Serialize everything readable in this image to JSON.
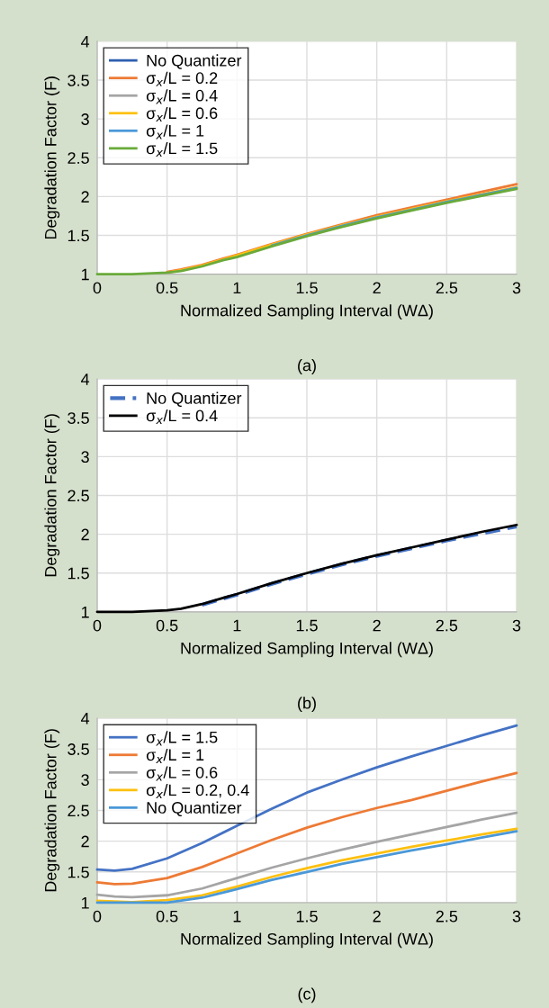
{
  "chart_data": [
    {
      "type": "line",
      "xlabel": "Normalized Sampling Interval (WΔ)",
      "ylabel": "Degradation Factor (F)",
      "annotations": [
        "(a)"
      ],
      "xlim": [
        0,
        3
      ],
      "ylim": [
        1,
        4
      ],
      "xticks": [
        0,
        0.5,
        1,
        1.5,
        2,
        2.5,
        3
      ],
      "yticks": [
        1,
        1.5,
        2,
        2.5,
        3,
        3.5,
        4
      ],
      "grid": true,
      "legend": "top left",
      "x": [
        0,
        0.25,
        0.5,
        0.6,
        0.75,
        0.9,
        1,
        1.25,
        1.5,
        1.75,
        2,
        2.25,
        2.5,
        2.75,
        3
      ],
      "series": [
        {
          "name": "No Quantizer",
          "color": "#2e5fae",
          "values": [
            null,
            null,
            null,
            null,
            null,
            null,
            null,
            null,
            null,
            null,
            null,
            null,
            null,
            null,
            null
          ]
        },
        {
          "name": "σ$_{x}$/L = 0.2",
          "color": "#ed7a35",
          "values": [
            null,
            null,
            1.03,
            1.06,
            1.12,
            1.2,
            1.25,
            1.39,
            1.52,
            1.64,
            1.76,
            1.86,
            1.96,
            2.06,
            2.16
          ]
        },
        {
          "name": "σ$_{x}$/L = 0.4",
          "color": "#a5a5a5",
          "values": [
            null,
            null,
            null,
            null,
            null,
            null,
            null,
            null,
            null,
            null,
            null,
            null,
            null,
            null,
            null
          ]
        },
        {
          "name": "σ$_{x}$/L = 0.6",
          "color": "#fdc010",
          "values": [
            null,
            null,
            1.02,
            1.05,
            1.11,
            1.19,
            1.24,
            1.38,
            1.51,
            1.63,
            1.74,
            1.84,
            1.94,
            2.03,
            2.12
          ]
        },
        {
          "name": "σ$_{x}$/L = 1",
          "color": "#4a98d8",
          "values": [
            null,
            null,
            null,
            null,
            null,
            null,
            null,
            1.37,
            1.5,
            1.62,
            1.73,
            1.83,
            1.93,
            2.02,
            2.11
          ]
        },
        {
          "name": "σ$_{x}$/L = 1.5",
          "color": "#6aaa3a",
          "values": [
            1,
            1.0,
            1.02,
            1.04,
            1.1,
            1.18,
            1.22,
            1.36,
            1.49,
            1.61,
            1.72,
            1.82,
            1.92,
            2.01,
            2.1
          ]
        }
      ]
    },
    {
      "type": "line",
      "xlabel": "Normalized Sampling Interval (WΔ)",
      "ylabel": "Degradation Factor (F)",
      "annotations": [
        "(b)"
      ],
      "xlim": [
        0,
        3
      ],
      "ylim": [
        1,
        4
      ],
      "xticks": [
        0,
        0.5,
        1,
        1.5,
        2,
        2.5,
        3
      ],
      "yticks": [
        1,
        1.5,
        2,
        2.5,
        3,
        3.5,
        4
      ],
      "grid": true,
      "legend": "top left",
      "x": [
        0,
        0.25,
        0.5,
        0.6,
        0.75,
        0.9,
        1,
        1.25,
        1.5,
        1.75,
        2,
        2.25,
        2.5,
        2.75,
        3
      ],
      "series": [
        {
          "name": "No Quantizer",
          "color": "#4472c4",
          "line_style": "dashed",
          "values": [
            null,
            null,
            null,
            null,
            1.09,
            1.17,
            1.22,
            1.36,
            1.49,
            1.61,
            1.72,
            1.82,
            1.92,
            2.01,
            2.1
          ]
        },
        {
          "name": "σ$_{x}$/L = 0.4",
          "color": "#000000",
          "line_style": "solid",
          "values": [
            1,
            1.0,
            1.02,
            1.04,
            1.1,
            1.18,
            1.23,
            1.37,
            1.5,
            1.62,
            1.73,
            1.83,
            1.93,
            2.03,
            2.12
          ]
        }
      ]
    },
    {
      "type": "line",
      "xlabel": "Normalized Sampling Interval (WΔ)",
      "ylabel": "Degradation Factor (F)",
      "annotations": [
        "(c)"
      ],
      "xlim": [
        0,
        3
      ],
      "ylim": [
        1,
        4
      ],
      "xticks": [
        0,
        0.5,
        1,
        1.5,
        2,
        2.5,
        3
      ],
      "yticks": [
        1,
        1.5,
        2,
        2.5,
        3,
        3.5,
        4
      ],
      "grid": true,
      "legend": "top left",
      "x": [
        0,
        0.125,
        0.25,
        0.5,
        0.75,
        1,
        1.25,
        1.5,
        1.75,
        2,
        2.25,
        2.5,
        2.75,
        3
      ],
      "series": [
        {
          "name": "σ$_{x}$/L = 1.5",
          "color": "#4472c4",
          "values": [
            1.54,
            1.52,
            1.55,
            1.72,
            1.97,
            2.25,
            2.53,
            2.79,
            3.0,
            3.2,
            3.38,
            3.55,
            3.72,
            3.88
          ]
        },
        {
          "name": "σ$_{x}$/L = 1",
          "color": "#ed7a35",
          "values": [
            1.33,
            1.3,
            1.31,
            1.4,
            1.58,
            1.8,
            2.02,
            2.22,
            2.39,
            2.54,
            2.67,
            2.82,
            2.97,
            3.11
          ]
        },
        {
          "name": "σ$_{x}$/L = 0.6",
          "color": "#a5a5a5",
          "values": [
            1.13,
            1.1,
            1.09,
            1.12,
            1.23,
            1.4,
            1.57,
            1.72,
            1.86,
            1.99,
            2.11,
            2.23,
            2.35,
            2.46
          ]
        },
        {
          "name": "σ$_{x}$/L = 0.2, 0.4",
          "color": "#fdc010",
          "values": [
            1.03,
            1.02,
            1.01,
            1.04,
            1.12,
            1.26,
            1.42,
            1.56,
            1.69,
            1.8,
            1.91,
            2.01,
            2.11,
            2.2
          ]
        },
        {
          "name": "No Quantizer",
          "color": "#4a98d8",
          "values": [
            1.0,
            1.0,
            1.0,
            1.0,
            1.08,
            1.22,
            1.37,
            1.5,
            1.63,
            1.74,
            1.85,
            1.95,
            2.06,
            2.16
          ]
        }
      ]
    }
  ]
}
